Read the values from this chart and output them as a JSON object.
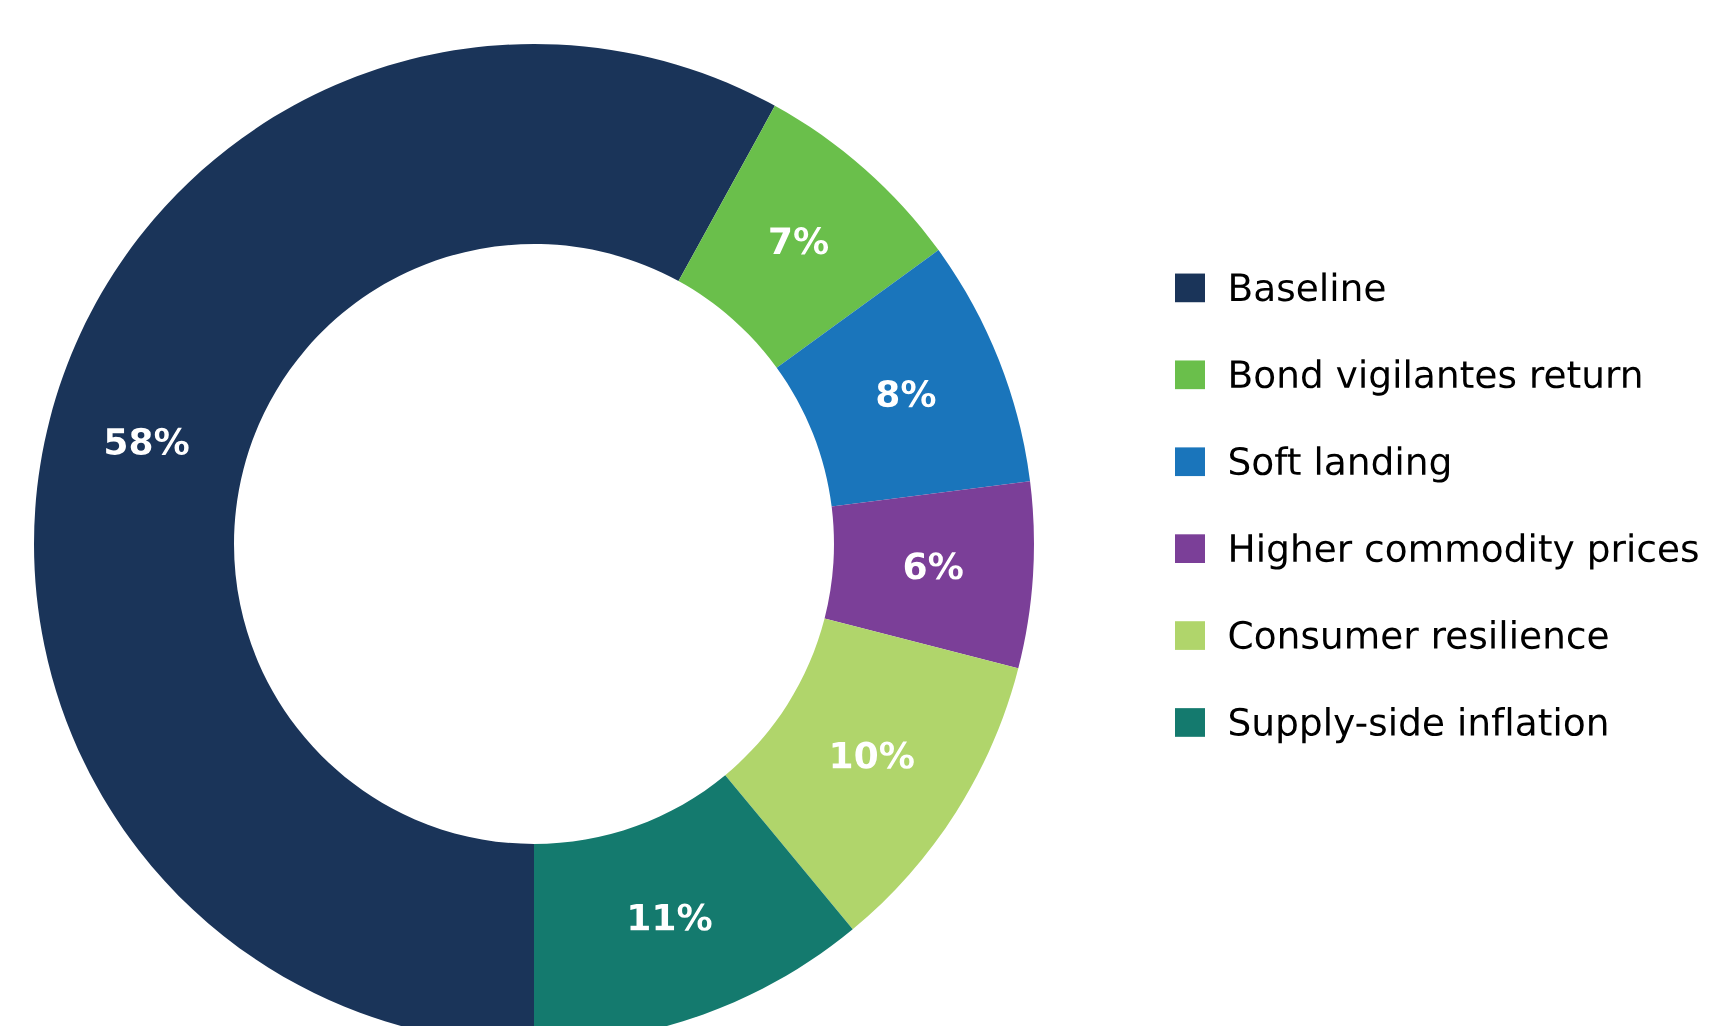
{
  "chart_data": {
    "type": "donut",
    "categories": [
      "Baseline",
      "Bond vigilantes return",
      "Soft landing",
      "Higher commodity prices",
      "Consumer resilience",
      "Supply-side inflation"
    ],
    "values": [
      58,
      7,
      8,
      6,
      10,
      11
    ],
    "colors": [
      "#1a3459",
      "#6abf4b",
      "#1a75bb",
      "#7b3f98",
      "#b0d56b",
      "#147a6e"
    ],
    "value_labels": [
      "58%",
      "7%",
      "8%",
      "6%",
      "10%",
      "11%"
    ],
    "legend": "right"
  }
}
